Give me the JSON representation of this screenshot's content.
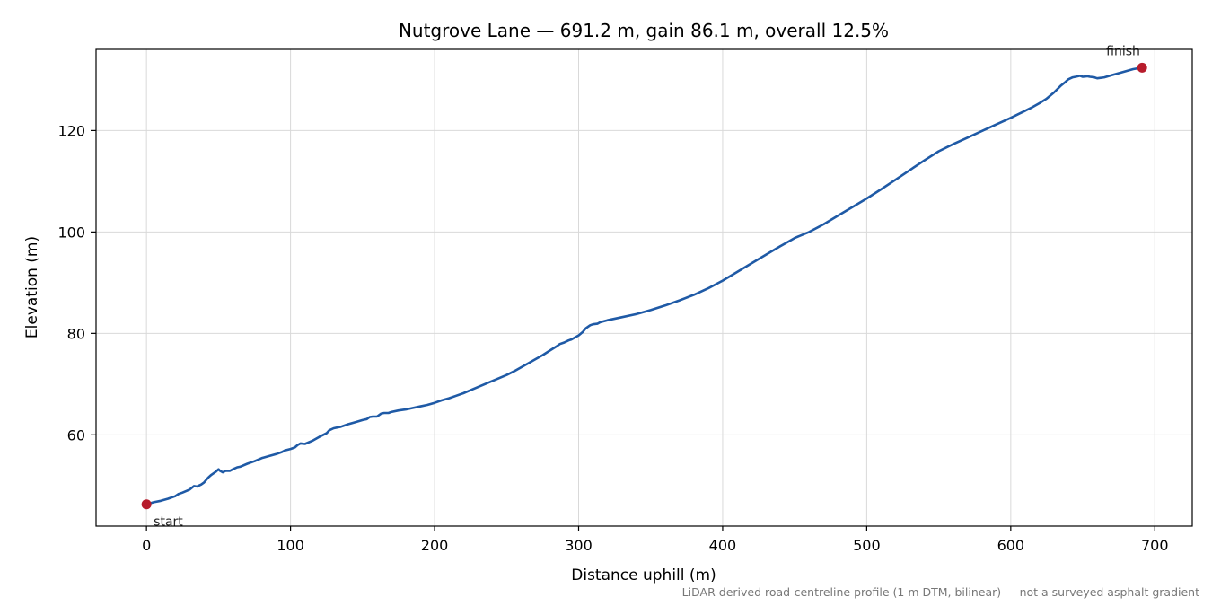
{
  "chart_data": {
    "type": "line",
    "title": "Nutgrove Lane — 691.2 m, gain 86.1 m, overall 12.5%",
    "xlabel": "Distance uphill (m)",
    "ylabel": "Elevation (m)",
    "xlim": [
      -35,
      726
    ],
    "ylim": [
      42,
      136
    ],
    "xticks": [
      0,
      100,
      200,
      300,
      400,
      500,
      600,
      700
    ],
    "yticks": [
      60,
      80,
      100,
      120
    ],
    "xtick_labels": [
      "0",
      "100",
      "200",
      "300",
      "400",
      "500",
      "600",
      "700"
    ],
    "ytick_labels": [
      "60",
      "80",
      "100",
      "120"
    ],
    "grid": true,
    "footnote": "LiDAR-derived road-centreline profile (1 m DTM, bilinear) — not a surveyed asphalt gradient",
    "series": [
      {
        "color": "#1f5aa6",
        "x": [
          0,
          5,
          10,
          15,
          20,
          22,
          25,
          30,
          33,
          35,
          38,
          40,
          43,
          45,
          48,
          50,
          51,
          53,
          55,
          58,
          60,
          63,
          65,
          70,
          75,
          80,
          85,
          90,
          94,
          96,
          100,
          103,
          105,
          107,
          110,
          115,
          120,
          125,
          127,
          130,
          135,
          140,
          145,
          150,
          153,
          155,
          157,
          160,
          163,
          165,
          168,
          170,
          175,
          180,
          185,
          190,
          195,
          200,
          205,
          210,
          215,
          220,
          225,
          230,
          235,
          240,
          245,
          250,
          255,
          260,
          265,
          270,
          275,
          280,
          285,
          287,
          290,
          293,
          295,
          300,
          303,
          305,
          308,
          310,
          313,
          315,
          320,
          330,
          340,
          350,
          360,
          370,
          380,
          390,
          400,
          410,
          420,
          430,
          440,
          445,
          450,
          460,
          470,
          480,
          490,
          500,
          510,
          520,
          530,
          540,
          550,
          560,
          570,
          580,
          590,
          600,
          605,
          610,
          615,
          620,
          625,
          630,
          635,
          638,
          640,
          643,
          645,
          648,
          650,
          653,
          655,
          658,
          660,
          663,
          665,
          670,
          675,
          680,
          685,
          691.2
        ],
        "y": [
          46.3,
          46.7,
          47.0,
          47.4,
          47.9,
          48.3,
          48.6,
          49.2,
          49.9,
          49.8,
          50.2,
          50.6,
          51.6,
          52.1,
          52.7,
          53.2,
          52.9,
          52.6,
          52.9,
          52.9,
          53.2,
          53.6,
          53.7,
          54.3,
          54.8,
          55.4,
          55.8,
          56.2,
          56.6,
          56.9,
          57.2,
          57.5,
          58.0,
          58.3,
          58.2,
          58.8,
          59.6,
          60.3,
          60.9,
          61.3,
          61.6,
          62.1,
          62.5,
          62.9,
          63.1,
          63.5,
          63.6,
          63.6,
          64.2,
          64.3,
          64.3,
          64.5,
          64.8,
          65.0,
          65.3,
          65.6,
          65.9,
          66.3,
          66.8,
          67.2,
          67.7,
          68.2,
          68.8,
          69.4,
          70.0,
          70.6,
          71.2,
          71.8,
          72.5,
          73.3,
          74.1,
          74.9,
          75.7,
          76.6,
          77.5,
          77.9,
          78.2,
          78.6,
          78.8,
          79.6,
          80.3,
          81.0,
          81.6,
          81.8,
          81.9,
          82.2,
          82.6,
          83.2,
          83.8,
          84.6,
          85.5,
          86.5,
          87.6,
          88.9,
          90.4,
          92.1,
          93.8,
          95.5,
          97.2,
          98.0,
          98.8,
          100.0,
          101.5,
          103.2,
          104.9,
          106.6,
          108.4,
          110.3,
          112.2,
          114.1,
          115.9,
          117.3,
          118.6,
          119.9,
          121.2,
          122.5,
          123.2,
          123.9,
          124.6,
          125.4,
          126.3,
          127.5,
          128.9,
          129.6,
          130.1,
          130.5,
          130.6,
          130.8,
          130.6,
          130.7,
          130.6,
          130.5,
          130.3,
          130.4,
          130.5,
          130.9,
          131.3,
          131.7,
          132.1,
          132.4
        ]
      }
    ],
    "points": [
      {
        "x": 0,
        "y": 46.3,
        "label": "start",
        "color": "#b71c2c"
      },
      {
        "x": 691.2,
        "y": 132.4,
        "label": "finish",
        "color": "#b71c2c"
      }
    ]
  }
}
